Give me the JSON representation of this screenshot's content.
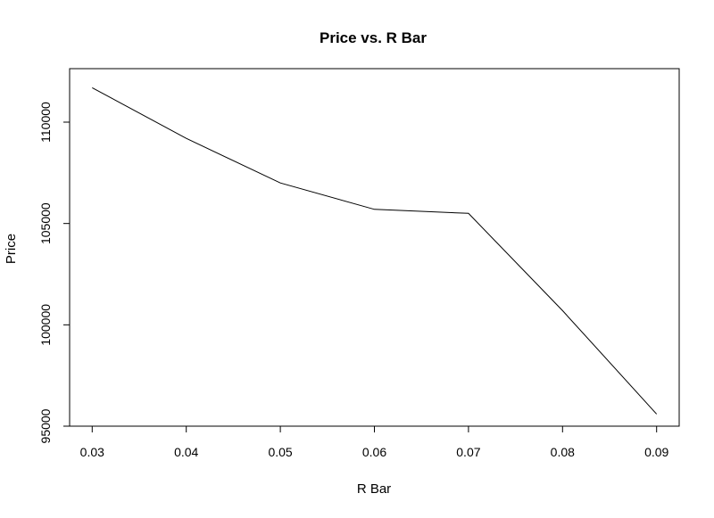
{
  "chart_data": {
    "type": "line",
    "title": "Price vs. R Bar",
    "xlabel": "R Bar",
    "ylabel": "Price",
    "x": [
      0.03,
      0.04,
      0.05,
      0.06,
      0.07,
      0.08,
      0.09
    ],
    "series": [
      {
        "values": [
          111700,
          109200,
          107000,
          105700,
          105500,
          100700,
          95600
        ]
      }
    ],
    "xticks": [
      "0.03",
      "0.04",
      "0.05",
      "0.06",
      "0.07",
      "0.08",
      "0.09"
    ],
    "yticks": [
      {
        "value": 95000,
        "label": "95000"
      },
      {
        "value": 100000,
        "label": "100000"
      },
      {
        "value": 105000,
        "label": "105000"
      },
      {
        "value": 110000,
        "label": "110000"
      }
    ],
    "xlim": [
      0.0276,
      0.0924
    ],
    "ylim": [
      95000,
      112640
    ],
    "grid": false,
    "line_color": "#000000"
  }
}
